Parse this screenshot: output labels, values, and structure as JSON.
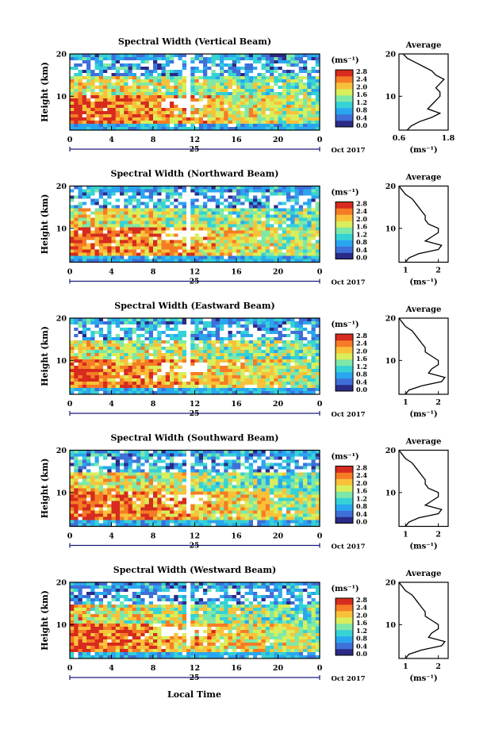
{
  "figure": {
    "xlabel_bottom": "Local Time",
    "date_label": "Oct 2017",
    "day_label": "25",
    "colorbar_unit": "(ms⁻¹)",
    "avg_title": "Average",
    "avg_unit": "(ms⁻¹)",
    "ylabel": "Height (km)"
  },
  "colormap": [
    "#2b2a87",
    "#3f6fd8",
    "#2aa6f0",
    "#35d2d6",
    "#7ee8a8",
    "#d9ee5a",
    "#f9c13a",
    "#f57c25",
    "#d62b1e"
  ],
  "chart_data": [
    {
      "type": "heatmap",
      "title": "Spectral Width (Vertical Beam)",
      "xlabel": "",
      "ylabel": "Height (km)",
      "xlim": [
        0,
        24
      ],
      "ylim": [
        2,
        20
      ],
      "xticks": [
        "0",
        "4",
        "8",
        "12",
        "16",
        "20",
        "0"
      ],
      "yticks": [
        "10",
        "20"
      ],
      "colorbar": {
        "ticks": [
          "0.0",
          "0.4",
          "0.8",
          "1.2",
          "1.6",
          "2.0",
          "2.4",
          "2.8"
        ],
        "range": [
          0,
          2.8
        ]
      },
      "profile": {
        "type": "line",
        "title": "Average",
        "xticks": [
          "0.6",
          "1.8"
        ],
        "xlim": [
          0.6,
          1.8
        ],
        "height_km": [
          2,
          3,
          4,
          5,
          6,
          7,
          8,
          9,
          10,
          11,
          12,
          13,
          14,
          15,
          16,
          17,
          18,
          19,
          20
        ],
        "values": [
          0.8,
          0.9,
          1.1,
          1.4,
          1.6,
          1.3,
          1.4,
          1.5,
          1.6,
          1.6,
          1.5,
          1.6,
          1.7,
          1.5,
          1.4,
          1.2,
          1.0,
          0.8,
          0.7
        ]
      }
    },
    {
      "type": "heatmap",
      "title": "Spectral Width (Northward Beam)",
      "xlabel": "",
      "ylabel": "Height (km)",
      "xlim": [
        0,
        24
      ],
      "ylim": [
        2,
        20
      ],
      "xticks": [
        "0",
        "4",
        "8",
        "12",
        "16",
        "20",
        "0"
      ],
      "yticks": [
        "10",
        "20"
      ],
      "colorbar": {
        "ticks": [
          "0.0",
          "0.4",
          "0.8",
          "1.2",
          "1.6",
          "2.0",
          "2.4",
          "2.8"
        ],
        "range": [
          0,
          2.8
        ]
      },
      "profile": {
        "type": "line",
        "title": "Average",
        "xticks": [
          "1",
          "2"
        ],
        "xlim": [
          0.8,
          2.3
        ],
        "height_km": [
          2,
          3,
          4,
          5,
          6,
          7,
          8,
          9,
          10,
          11,
          12,
          13,
          14,
          15,
          16,
          17,
          18,
          19,
          20
        ],
        "values": [
          1.0,
          1.1,
          1.4,
          2.0,
          2.1,
          1.6,
          1.8,
          2.0,
          2.0,
          1.7,
          1.6,
          1.6,
          1.5,
          1.4,
          1.3,
          1.2,
          1.0,
          0.9,
          0.8
        ]
      }
    },
    {
      "type": "heatmap",
      "title": "Spectral Width (Eastward Beam)",
      "xlabel": "",
      "ylabel": "Height (km)",
      "xlim": [
        0,
        24
      ],
      "ylim": [
        2,
        20
      ],
      "xticks": [
        "0",
        "4",
        "8",
        "12",
        "16",
        "20",
        "0"
      ],
      "yticks": [
        "10",
        "20"
      ],
      "colorbar": {
        "ticks": [
          "0.0",
          "0.4",
          "0.8",
          "1.2",
          "1.6",
          "2.0",
          "2.4",
          "2.8"
        ],
        "range": [
          0,
          2.8
        ]
      },
      "profile": {
        "type": "line",
        "title": "Average",
        "xticks": [
          "1",
          "2"
        ],
        "xlim": [
          0.8,
          2.3
        ],
        "height_km": [
          2,
          3,
          4,
          5,
          6,
          7,
          8,
          9,
          10,
          11,
          12,
          13,
          14,
          15,
          16,
          17,
          18,
          19,
          20
        ],
        "values": [
          1.0,
          1.1,
          1.5,
          2.1,
          2.2,
          1.7,
          1.8,
          2.0,
          2.0,
          1.8,
          1.6,
          1.6,
          1.5,
          1.4,
          1.3,
          1.2,
          1.0,
          0.9,
          0.8
        ]
      }
    },
    {
      "type": "heatmap",
      "title": "Spectral Width (Southward Beam)",
      "xlabel": "",
      "ylabel": "Height (km)",
      "xlim": [
        0,
        24
      ],
      "ylim": [
        2,
        20
      ],
      "xticks": [
        "0",
        "4",
        "8",
        "12",
        "16",
        "20",
        "0"
      ],
      "yticks": [
        "10",
        "20"
      ],
      "colorbar": {
        "ticks": [
          "0.0",
          "0.4",
          "0.8",
          "1.2",
          "1.6",
          "2.0",
          "2.4",
          "2.8"
        ],
        "range": [
          0,
          2.8
        ]
      },
      "profile": {
        "type": "line",
        "title": "Average",
        "xticks": [
          "1",
          "2"
        ],
        "xlim": [
          0.8,
          2.3
        ],
        "height_km": [
          2,
          3,
          4,
          5,
          6,
          7,
          8,
          9,
          10,
          11,
          12,
          13,
          14,
          15,
          16,
          17,
          18,
          19,
          20
        ],
        "values": [
          1.0,
          1.1,
          1.4,
          2.0,
          2.1,
          1.6,
          1.8,
          2.0,
          2.0,
          1.7,
          1.6,
          1.6,
          1.5,
          1.4,
          1.3,
          1.2,
          1.0,
          0.9,
          0.8
        ]
      }
    },
    {
      "type": "heatmap",
      "title": "Spectral Width (Westward Beam)",
      "xlabel": "Local Time",
      "ylabel": "Height (km)",
      "xlim": [
        0,
        24
      ],
      "ylim": [
        2,
        20
      ],
      "xticks": [
        "0",
        "4",
        "8",
        "12",
        "16",
        "20",
        "0"
      ],
      "yticks": [
        "10",
        "20"
      ],
      "colorbar": {
        "ticks": [
          "0.0",
          "0.4",
          "0.8",
          "1.2",
          "1.6",
          "2.0",
          "2.4",
          "2.8"
        ],
        "range": [
          0,
          2.8
        ]
      },
      "profile": {
        "type": "line",
        "title": "Average",
        "xticks": [
          "1",
          "2"
        ],
        "xlim": [
          0.8,
          2.3
        ],
        "height_km": [
          2,
          3,
          4,
          5,
          6,
          7,
          8,
          9,
          10,
          11,
          12,
          13,
          14,
          15,
          16,
          17,
          18,
          19,
          20
        ],
        "values": [
          1.0,
          1.1,
          1.5,
          2.1,
          2.2,
          1.7,
          1.8,
          2.0,
          2.0,
          1.8,
          1.6,
          1.6,
          1.5,
          1.4,
          1.3,
          1.2,
          1.0,
          0.9,
          0.8
        ]
      }
    }
  ]
}
